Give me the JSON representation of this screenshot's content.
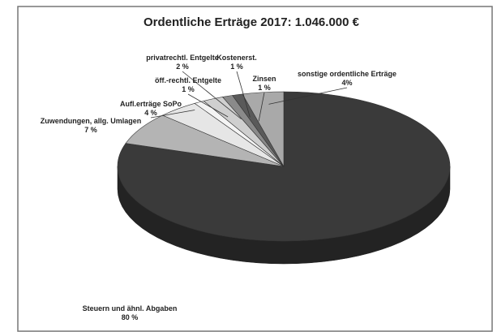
{
  "chart_data": {
    "type": "pie",
    "title": "Ordentliche Erträge 2017: 1.046.000 €",
    "categories": [
      "Steuern und ähnl. Abgaben",
      "Zuwendungen, allg. Umlagen",
      "Aufl.erträge SoPo",
      "öff.-rechtl. Entgelte",
      "privatrechtl. Entgelte",
      "Kostenerst.",
      "Zinsen",
      "sonstige ordentliche Erträge"
    ],
    "values": [
      80,
      7,
      4,
      1,
      2,
      1,
      1,
      4
    ],
    "value_labels": [
      "80 %",
      "7 %",
      "4 %",
      "1 %",
      "2 %",
      "1 %",
      "1 %",
      "4%"
    ],
    "colors": [
      "#3a3a3a",
      "#b4b4b4",
      "#e6e6e6",
      "#f4f4f4",
      "#cfcfcf",
      "#8a8a8a",
      "#5a5a5a",
      "#a9a9a9"
    ]
  }
}
